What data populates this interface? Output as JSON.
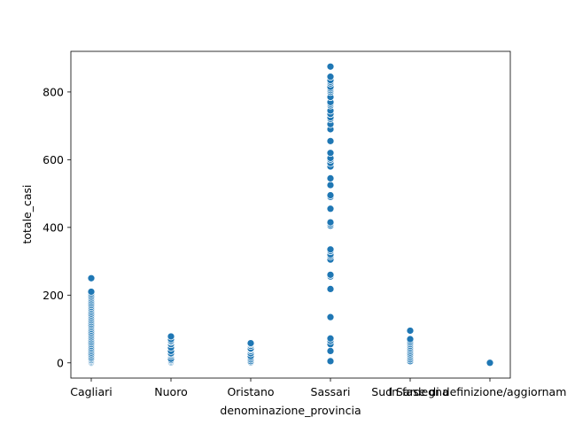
{
  "chart_data": {
    "type": "scatter",
    "title": "",
    "xlabel": "denominazione_provincia",
    "ylabel": "totale_casi",
    "categories": [
      "Cagliari",
      "Nuoro",
      "Oristano",
      "Sassari",
      "Sud Sardegna",
      "In fase di definizione/aggiornamento"
    ],
    "ylim": [
      -45,
      920
    ],
    "yticks": [
      0,
      200,
      400,
      600,
      800
    ],
    "grid": false,
    "legend": "none",
    "marker_color": "#1f77b4",
    "series": [
      {
        "values": [
          [
            0,
            2,
            5,
            8,
            12,
            15,
            20,
            25,
            30,
            35,
            40,
            45,
            50,
            55,
            60,
            65,
            70,
            75,
            80,
            85,
            90,
            95,
            100,
            105,
            110,
            115,
            120,
            125,
            130,
            135,
            140,
            145,
            150,
            155,
            160,
            165,
            170,
            175,
            180,
            185,
            190,
            195,
            200,
            205,
            210,
            250
          ],
          [
            2,
            5,
            8,
            12,
            20,
            25,
            28,
            35,
            45,
            55,
            62,
            65,
            70,
            78
          ],
          [
            2,
            5,
            10,
            15,
            20,
            28,
            35,
            40,
            42,
            50,
            55,
            58
          ],
          [
            5,
            35,
            55,
            65,
            72,
            135,
            218,
            255,
            260,
            305,
            315,
            320,
            330,
            335,
            405,
            410,
            415,
            455,
            490,
            495,
            525,
            545,
            580,
            590,
            600,
            605,
            620,
            655,
            690,
            705,
            720,
            725,
            735,
            745,
            760,
            765,
            770,
            785,
            800,
            805,
            810,
            815,
            825,
            830,
            835,
            845,
            875
          ],
          [
            5,
            10,
            15,
            20,
            25,
            30,
            35,
            40,
            45,
            50,
            55,
            60,
            65,
            70,
            95
          ],
          [
            0
          ]
        ]
      }
    ]
  }
}
